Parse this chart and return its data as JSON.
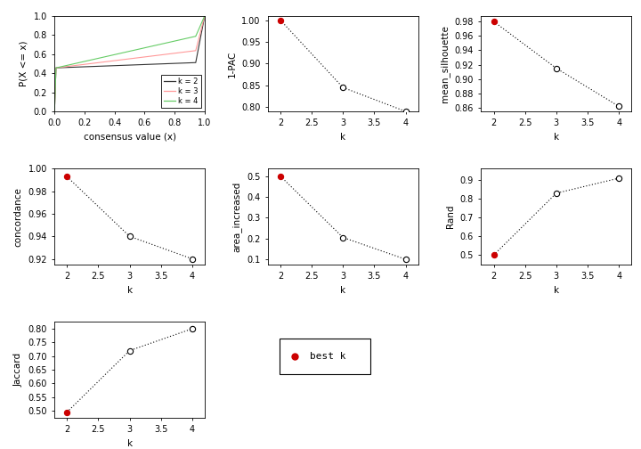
{
  "ecdf": {
    "k2": {
      "color": "#333333",
      "label": "k = 2"
    },
    "k3": {
      "color": "#FF9999",
      "label": "k = 3"
    },
    "k4": {
      "color": "#66CC66",
      "label": "k = 4"
    }
  },
  "pac": {
    "k": [
      2,
      3,
      4
    ],
    "y": [
      1.0,
      0.845,
      0.79
    ],
    "best_k_idx": 0,
    "ylabel": "1-PAC",
    "ylim": [
      0.79,
      1.01
    ],
    "yticks": [
      0.8,
      0.85,
      0.9,
      0.95,
      1.0
    ]
  },
  "silhouette": {
    "k": [
      2,
      3,
      4
    ],
    "y": [
      0.98,
      0.915,
      0.862
    ],
    "best_k_idx": 0,
    "ylabel": "mean_silhouette",
    "ylim": [
      0.855,
      0.988
    ],
    "yticks": [
      0.86,
      0.88,
      0.9,
      0.92,
      0.94,
      0.96,
      0.98
    ]
  },
  "concordance": {
    "k": [
      2,
      3,
      4
    ],
    "y": [
      0.993,
      0.94,
      0.92
    ],
    "best_k_idx": 0,
    "ylabel": "concordance",
    "ylim": [
      0.915,
      1.0
    ],
    "yticks": [
      0.92,
      0.94,
      0.96,
      0.98,
      1.0
    ]
  },
  "area_increased": {
    "k": [
      2,
      3,
      4
    ],
    "y": [
      0.5,
      0.205,
      0.1
    ],
    "best_k_idx": 0,
    "ylabel": "area_increased",
    "ylim": [
      0.075,
      0.535
    ],
    "yticks": [
      0.1,
      0.2,
      0.3,
      0.4,
      0.5
    ]
  },
  "rand": {
    "k": [
      2,
      3,
      4
    ],
    "y": [
      0.5,
      0.83,
      0.91
    ],
    "best_k_idx": 0,
    "ylabel": "Rand",
    "ylim": [
      0.45,
      0.96
    ],
    "yticks": [
      0.5,
      0.6,
      0.7,
      0.8,
      0.9
    ]
  },
  "jaccard": {
    "k": [
      2,
      3,
      4
    ],
    "y": [
      0.495,
      0.72,
      0.8
    ],
    "best_k_idx": 0,
    "ylabel": "Jaccard",
    "ylim": [
      0.475,
      0.825
    ],
    "yticks": [
      0.5,
      0.55,
      0.6,
      0.65,
      0.7,
      0.75,
      0.8
    ]
  },
  "best_k_color": "#CC0000",
  "open_marker_color": "#000000",
  "line_color": "#000000",
  "xlabel": "k",
  "ecdf_xlabel": "consensus value (x)",
  "ecdf_ylabel": "P(X <= x)"
}
